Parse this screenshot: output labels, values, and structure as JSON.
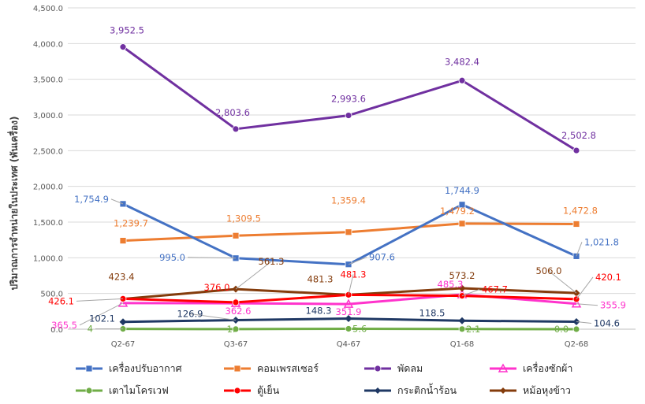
{
  "chart_data": {
    "type": "line",
    "title": "",
    "xlabel": "",
    "ylabel": "ปริมาณการจำหน่ายในประเทศ (พันเครื่อง)",
    "ylim": [
      0,
      4500
    ],
    "yticks": [
      "0.0",
      "500.0",
      "1,000.0",
      "1,500.0",
      "2,000.0",
      "2,500.0",
      "3,000.0",
      "3,500.0",
      "4,000.0",
      "4,500.0"
    ],
    "categories": [
      "Q2-67",
      "Q3-67",
      "Q4-67",
      "Q1-68",
      "Q2-68"
    ],
    "grid": true,
    "legend_position": "bottom",
    "series": [
      {
        "name": "เครื่องปรับอากาศ",
        "color": "#4472C4",
        "marker": "square",
        "values": [
          1754.9,
          995.0,
          907.6,
          1744.9,
          1021.8
        ],
        "labels": [
          "1,754.9",
          "995.0",
          "907.6",
          "1,744.9",
          "1,021.8"
        ]
      },
      {
        "name": "คอมเพรสเซอร์",
        "color": "#ED7D31",
        "marker": "square",
        "values": [
          1239.7,
          1309.5,
          1359.4,
          1479.2,
          1472.8
        ],
        "labels": [
          "1,239.7",
          "1,309.5",
          "1,359.4",
          "1,479.2",
          "1,472.8"
        ]
      },
      {
        "name": "พัดลม",
        "color": "#7030A0",
        "marker": "circle",
        "values": [
          3952.5,
          2803.6,
          2993.6,
          3482.4,
          2502.8
        ],
        "labels": [
          "3,952.5",
          "2,803.6",
          "2,993.6",
          "3,482.4",
          "2,502.8"
        ]
      },
      {
        "name": "เครื่องซักผ้า",
        "color": "#FF33CC",
        "marker": "triangle",
        "values": [
          365.5,
          362.6,
          351.9,
          485.3,
          355.9
        ],
        "labels": [
          "365.5",
          "362.6",
          "351.9",
          "485.3",
          "355.9"
        ]
      },
      {
        "name": "เตาไมโครเวฟ",
        "color": "#70AD47",
        "marker": "circle",
        "values": [
          4.0,
          1.0,
          5.6,
          2.1,
          0.0
        ],
        "labels": [
          "4",
          "1.",
          "5.6",
          "2.1",
          "0.0"
        ]
      },
      {
        "name": "ตู้เย็น",
        "color": "#FF0000",
        "marker": "circle",
        "values": [
          426.1,
          376.0,
          481.3,
          467.7,
          420.1
        ],
        "labels": [
          "426.1",
          "376.0",
          "481.3",
          "467.7",
          "420.1"
        ]
      },
      {
        "name": "กระติกน้ำร้อน",
        "color": "#1F3864",
        "marker": "diamond",
        "values": [
          102.1,
          126.9,
          148.3,
          118.5,
          104.6
        ],
        "labels": [
          "102.1",
          "126.9",
          "148.3",
          "118.5",
          "104.6"
        ]
      },
      {
        "name": "หม้อหุงข้าว",
        "color": "#843C0C",
        "marker": "diamond",
        "values": [
          423.4,
          561.3,
          481.3,
          573.2,
          506.0
        ],
        "labels": [
          "423.4",
          "561.3",
          "481.3",
          "573.2",
          "506.0"
        ]
      }
    ]
  }
}
